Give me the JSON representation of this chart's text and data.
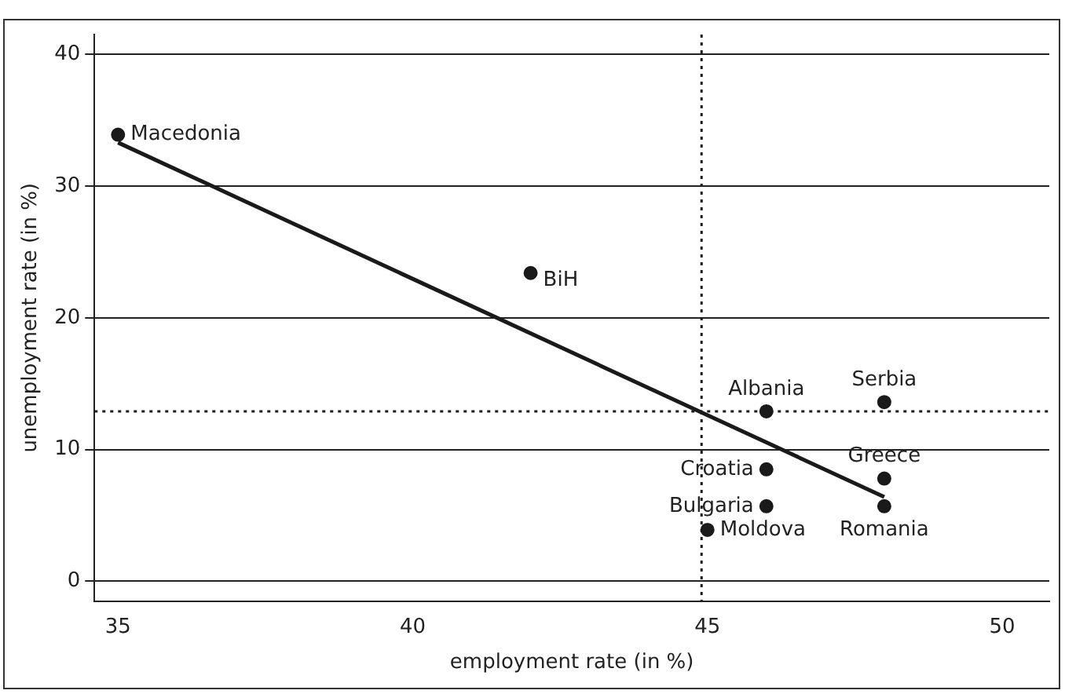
{
  "chart_data": {
    "type": "scatter",
    "xlabel": "employment rate (in %)",
    "ylabel": "unemployment rate (in %)",
    "xlim": [
      34.6,
      50.8
    ],
    "xticks": [
      35,
      40,
      45,
      50
    ],
    "ylim": [
      -1.5,
      41.5
    ],
    "yticks": [
      0,
      10,
      20,
      30,
      40
    ],
    "grid": "y",
    "legend": false,
    "series": [
      {
        "marker": "circle",
        "color": "#1a1a1a",
        "x": [
          35,
          42,
          46,
          48,
          46,
          48,
          46,
          48,
          45
        ],
        "values": [
          33.9,
          23.4,
          12.9,
          13.6,
          8.5,
          7.8,
          5.7,
          5.7,
          3.9
        ]
      },
      {
        "type": "line",
        "color": "#1a1a1a",
        "x": [
          35,
          48
        ],
        "values": [
          33.3,
          6.4
        ]
      }
    ],
    "ref_lines": [
      {
        "axis": "x",
        "value": 44.9,
        "line_style": "dotted",
        "color": "#1a1a1a"
      },
      {
        "axis": "y",
        "value": 12.9,
        "line_style": "dotted",
        "color": "#1a1a1a"
      }
    ],
    "annotations": [
      {
        "text": "Macedonia",
        "x": 35,
        "y": 33.9
      },
      {
        "text": "BiH",
        "x": 42,
        "y": 23.4
      },
      {
        "text": "Albania",
        "x": 46,
        "y": 12.9
      },
      {
        "text": "Serbia",
        "x": 48,
        "y": 13.6
      },
      {
        "text": "Croatia",
        "x": 46,
        "y": 8.5
      },
      {
        "text": "Greece",
        "x": 48,
        "y": 7.8
      },
      {
        "text": "Bulgaria",
        "x": 46,
        "y": 5.7
      },
      {
        "text": "Romania",
        "x": 48,
        "y": 5.7
      },
      {
        "text": "Moldova",
        "x": 45,
        "y": 3.9
      }
    ]
  }
}
